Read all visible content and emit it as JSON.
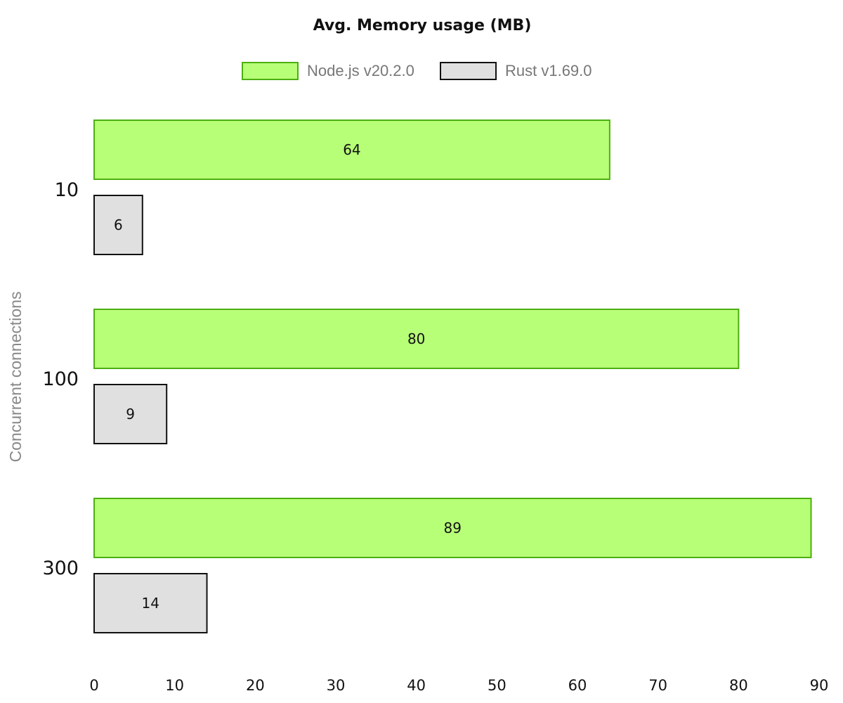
{
  "chart_data": {
    "type": "bar",
    "orientation": "horizontal",
    "title": "Avg. Memory usage (MB)",
    "ylabel": "Concurrent connections",
    "xlabel": "",
    "categories": [
      "10",
      "100",
      "300"
    ],
    "series": [
      {
        "name": "Node.js v20.2.0",
        "values": [
          64,
          80,
          89
        ],
        "fill": "#b8ff78",
        "stroke": "#4caf10"
      },
      {
        "name": "Rust v1.69.0",
        "values": [
          6,
          9,
          14
        ],
        "fill": "#e0e0e0",
        "stroke": "#111111"
      }
    ],
    "xlim": [
      0,
      90
    ],
    "xticks": [
      0,
      10,
      20,
      30,
      40,
      50,
      60,
      70,
      80,
      90
    ],
    "grid": false,
    "legend_position": "top-center",
    "data_labels": true
  }
}
